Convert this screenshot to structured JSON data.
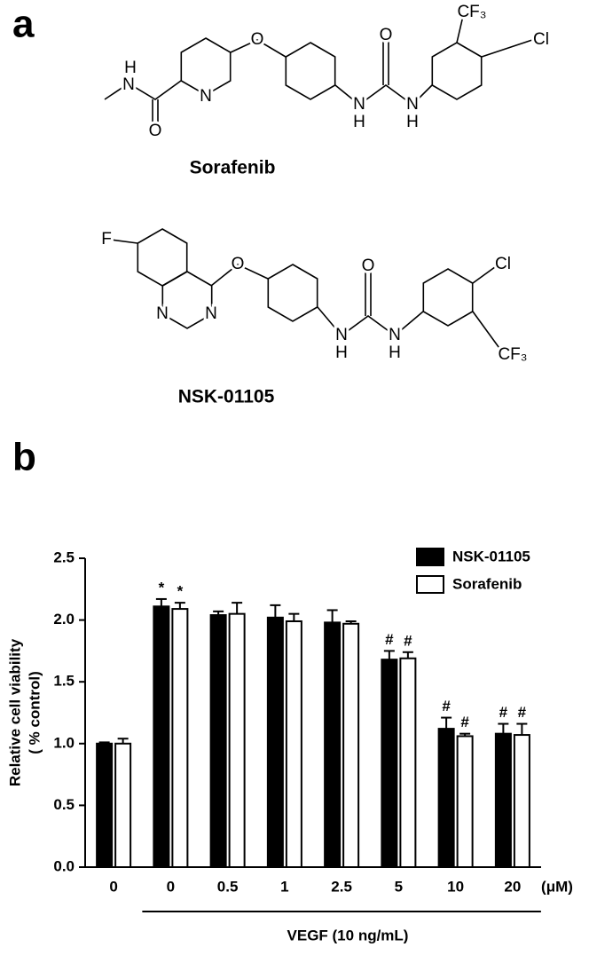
{
  "panel_labels": [
    "a",
    "b"
  ],
  "structures": [
    {
      "name": "Sorafenib",
      "atoms": [
        "H",
        "N",
        "O",
        "N",
        "O",
        "N",
        "H",
        "O",
        "N",
        "H",
        "CF₃",
        "Cl"
      ]
    },
    {
      "name": "NSK-01105",
      "atoms": [
        "F",
        "N",
        "N",
        "O",
        "N",
        "H",
        "O",
        "N",
        "H",
        "Cl",
        "CF₃"
      ]
    }
  ],
  "chart_data": {
    "type": "bar",
    "ylabel": [
      "Relative cell viability",
      "( % control)"
    ],
    "x_unit": "(μM)",
    "group_label": "VEGF (10 ng/mL)",
    "categories": [
      "0",
      "0",
      "0.5",
      "1",
      "2.5",
      "5",
      "10",
      "20"
    ],
    "series": [
      {
        "name": "NSK-01105",
        "color": "#000000",
        "values": [
          1.0,
          2.11,
          2.04,
          2.02,
          1.98,
          1.68,
          1.12,
          1.08
        ],
        "errors": [
          0.01,
          0.06,
          0.03,
          0.1,
          0.1,
          0.07,
          0.09,
          0.08
        ],
        "annotations": [
          null,
          "*",
          null,
          null,
          null,
          "#",
          "#",
          "#"
        ]
      },
      {
        "name": "Sorafenib",
        "color": "#ffffff",
        "values": [
          1.0,
          2.09,
          2.05,
          1.99,
          1.97,
          1.69,
          1.06,
          1.07
        ],
        "errors": [
          0.04,
          0.05,
          0.09,
          0.06,
          0.02,
          0.05,
          0.02,
          0.09
        ],
        "annotations": [
          null,
          "*",
          null,
          null,
          null,
          "#",
          "#",
          "#"
        ]
      }
    ],
    "ylim": [
      0,
      2.5
    ],
    "yticks": [
      {
        "value": 0,
        "label": "0.0"
      },
      {
        "value": 0.5,
        "label": "0.5"
      },
      {
        "value": 1,
        "label": "1.0"
      },
      {
        "value": 1.5,
        "label": "1.5"
      },
      {
        "value": 2,
        "label": "2.0"
      },
      {
        "value": 2.5,
        "label": "2.5"
      }
    ],
    "legend": "upper right"
  }
}
